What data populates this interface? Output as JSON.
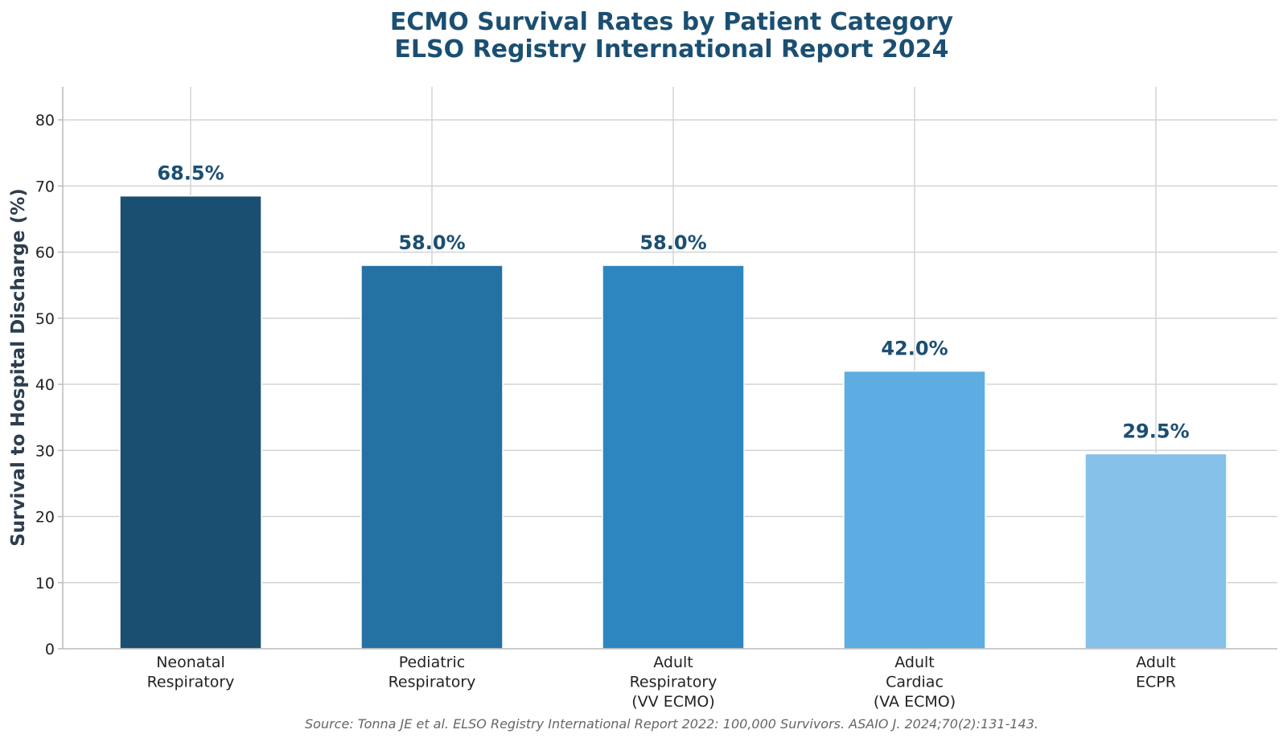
{
  "chart_data": {
    "type": "bar",
    "title_lines": [
      "ECMO Survival Rates by Patient Category",
      "ELSO Registry International Report 2024"
    ],
    "xlabel": "",
    "ylabel": "Survival to Hospital Discharge (%)",
    "categories": [
      [
        "Neonatal",
        "Respiratory"
      ],
      [
        "Pediatric",
        "Respiratory"
      ],
      [
        "Adult",
        "Respiratory",
        "(VV ECMO)"
      ],
      [
        "Adult",
        "Cardiac",
        "(VA ECMO)"
      ],
      [
        "Adult",
        "ECPR"
      ]
    ],
    "values": [
      68.5,
      58.0,
      58.0,
      42.0,
      29.5
    ],
    "data_labels": [
      "68.5%",
      "58.0%",
      "58.0%",
      "42.0%",
      "29.5%"
    ],
    "ylim": [
      0,
      85
    ],
    "yticks": [
      0,
      10,
      20,
      30,
      40,
      50,
      60,
      70,
      80
    ],
    "grid": true,
    "bar_colors": [
      "#1b4f72",
      "#2471a3",
      "#2e86c1",
      "#5dade2",
      "#85c1e9"
    ],
    "title_color": "#1b4f72",
    "label_color": "#1b4f72",
    "source_note": "Source: Tonna JE et al. ELSO Registry International Report 2022: 100,000 Survivors. ASAIO J. 2024;70(2):131-143."
  }
}
